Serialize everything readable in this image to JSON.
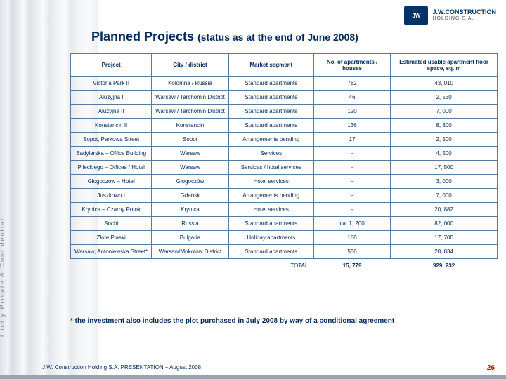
{
  "logo": {
    "icon_text": "JW",
    "line1": "J.W.CONSTRUCTION",
    "line2": "HOLDING S.A."
  },
  "title": {
    "main": "Planned Projects",
    "sub": "(status as at the end of June 2008)"
  },
  "vertical": "trictly  Private  &  Confidential",
  "table": {
    "headers": [
      "Project",
      "City / district",
      "Market segment",
      "No. of apartments / houses",
      "Estimated usable apartment floor space, sq. m"
    ],
    "rows": [
      [
        "Victoria Park II",
        "Kolomna / Russia",
        "Standard apartments",
        "782",
        "43, 010"
      ],
      [
        "Aluzyjna I",
        "Warsaw / Tarchomin District",
        "Standard apartments",
        "46",
        "2, 530"
      ],
      [
        "Aluzyjna II",
        "Warsaw / Tarchomin District",
        "Standard apartments",
        "120",
        "7, 000"
      ],
      [
        "Konstancin II",
        "Konstancin",
        "Standard apartments",
        "136",
        "8, 800"
      ],
      [
        "Sopot, Parkowa Street",
        "Sopot",
        "Arrangements pending",
        "17",
        "2, 500"
      ],
      [
        "Badylarska – Office Building",
        "Warsaw",
        "Services",
        "-",
        "4, 500"
      ],
      [
        "Pileckiego – Offices / Hotel",
        "Warsaw",
        "Services / hotel services",
        "-",
        "17, 500"
      ],
      [
        "Głogoczów – Hotel",
        "Głogoczów",
        "Hotel services",
        "-",
        "3, 000"
      ],
      [
        "Juszkowo I",
        "Gdańsk",
        "Arrangements pending",
        "-",
        "7, 000"
      ],
      [
        "Krynica – Czarny Potok",
        "Krynica",
        "Hotel services",
        "-",
        "20, 882"
      ],
      [
        "Sochi",
        "Russia",
        "Standard apartments",
        "ca. 1, 200",
        "82, 000"
      ],
      [
        "Złote Piaski",
        "Bulgaria",
        "Holiday apartments",
        "180",
        "17, 700"
      ],
      [
        "Warsaw, Antoniewska Street*",
        "Warsaw/Mokotów District",
        "Standard apartments",
        "550",
        "28, 834"
      ]
    ],
    "total_label": "TOTAL",
    "total_apts": "15, 779",
    "total_sqm": "929, 232"
  },
  "footnote": "* the investment also includes the plot purchased in July 2008 by way of a conditional agreement",
  "footer": "J.W. Construction Holding S.A.   PRESENTATION – August 2008",
  "page": "26"
}
